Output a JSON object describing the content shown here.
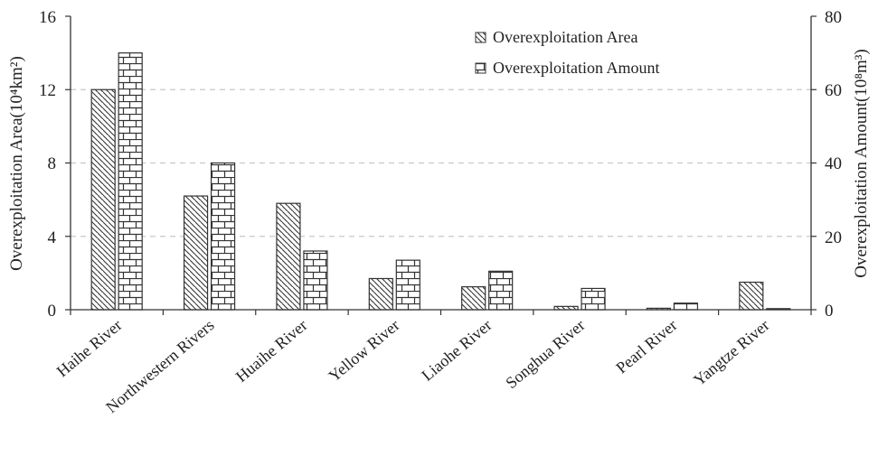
{
  "chart_data": {
    "type": "bar",
    "categories": [
      "Haihe River",
      "Northwestern Rivers",
      "Huaihe River",
      "Yellow River",
      "Liaohe River",
      "Songhua River",
      "Pearl River",
      "Yangtze River"
    ],
    "series": [
      {
        "name": "Overexploitation Area",
        "axis": "left",
        "pattern": "diagonal-hatch",
        "values": [
          12.0,
          6.2,
          5.8,
          1.7,
          1.25,
          0.18,
          0.08,
          1.5
        ]
      },
      {
        "name": "Overexploitation Amount",
        "axis": "right",
        "pattern": "brick",
        "values": [
          70,
          40,
          16,
          13.5,
          10.5,
          5.8,
          1.8,
          0.3
        ]
      }
    ],
    "ylabel_left": "Overexploitation Area(10⁴km²)",
    "ylabel_right": "Overexploitation Amount(10⁸m³)",
    "ylim_left": [
      0,
      16
    ],
    "ylim_right": [
      0,
      80
    ],
    "yticks_left": [
      "0",
      "4",
      "8",
      "12",
      "16"
    ],
    "yticks_right": [
      "0",
      "20",
      "40",
      "60",
      "80"
    ],
    "grid": "horizontal-dashed",
    "legend_position": "top-right",
    "colors": {
      "bar_fill": "#ffffff",
      "line": "#333333",
      "grid": "#c8c8c8"
    }
  }
}
